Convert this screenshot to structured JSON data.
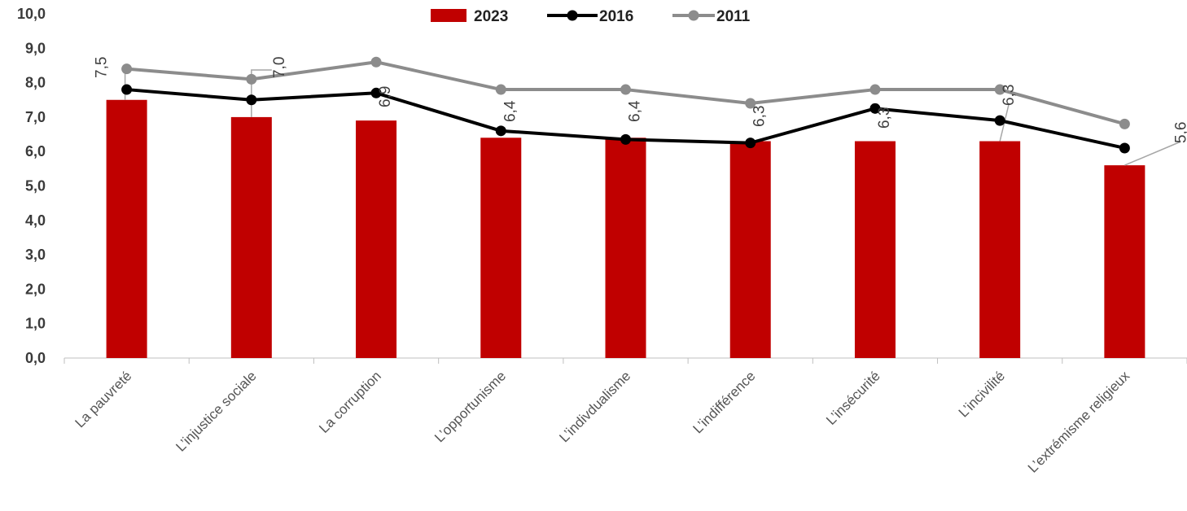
{
  "chart_data": {
    "type": "bar",
    "categories": [
      "La pauvreté",
      "L’injustice sociale",
      "La corruption",
      "L’opportunisme",
      "L’indivdualisme",
      "L’indifférence",
      "L’insécurité",
      "L’incivilité",
      "L’extrémisme religieux"
    ],
    "ylim": [
      0,
      10
    ],
    "yticks": [
      "0,0",
      "1,0",
      "2,0",
      "3,0",
      "4,0",
      "5,0",
      "6,0",
      "7,0",
      "8,0",
      "9,0",
      "10,0"
    ],
    "grid": false,
    "legend_position": "top-center",
    "series": [
      {
        "name": "2023",
        "kind": "bar",
        "color": "#c00000",
        "values": [
          7.5,
          7.0,
          6.9,
          6.4,
          6.4,
          6.3,
          6.3,
          6.3,
          5.6
        ],
        "labels": [
          "7,5",
          "7,0",
          "6,9",
          "6,4",
          "6,4",
          "6,3",
          "6,3",
          "6,3",
          "5,6"
        ]
      },
      {
        "name": "2016",
        "kind": "line",
        "color": "#000000",
        "values": [
          7.8,
          7.5,
          7.7,
          6.6,
          6.35,
          6.25,
          7.25,
          6.9,
          6.1
        ]
      },
      {
        "name": "2011",
        "kind": "line",
        "color": "#8c8c8c",
        "values": [
          8.4,
          8.1,
          8.6,
          7.8,
          7.8,
          7.4,
          7.8,
          7.8,
          6.8
        ]
      }
    ]
  }
}
